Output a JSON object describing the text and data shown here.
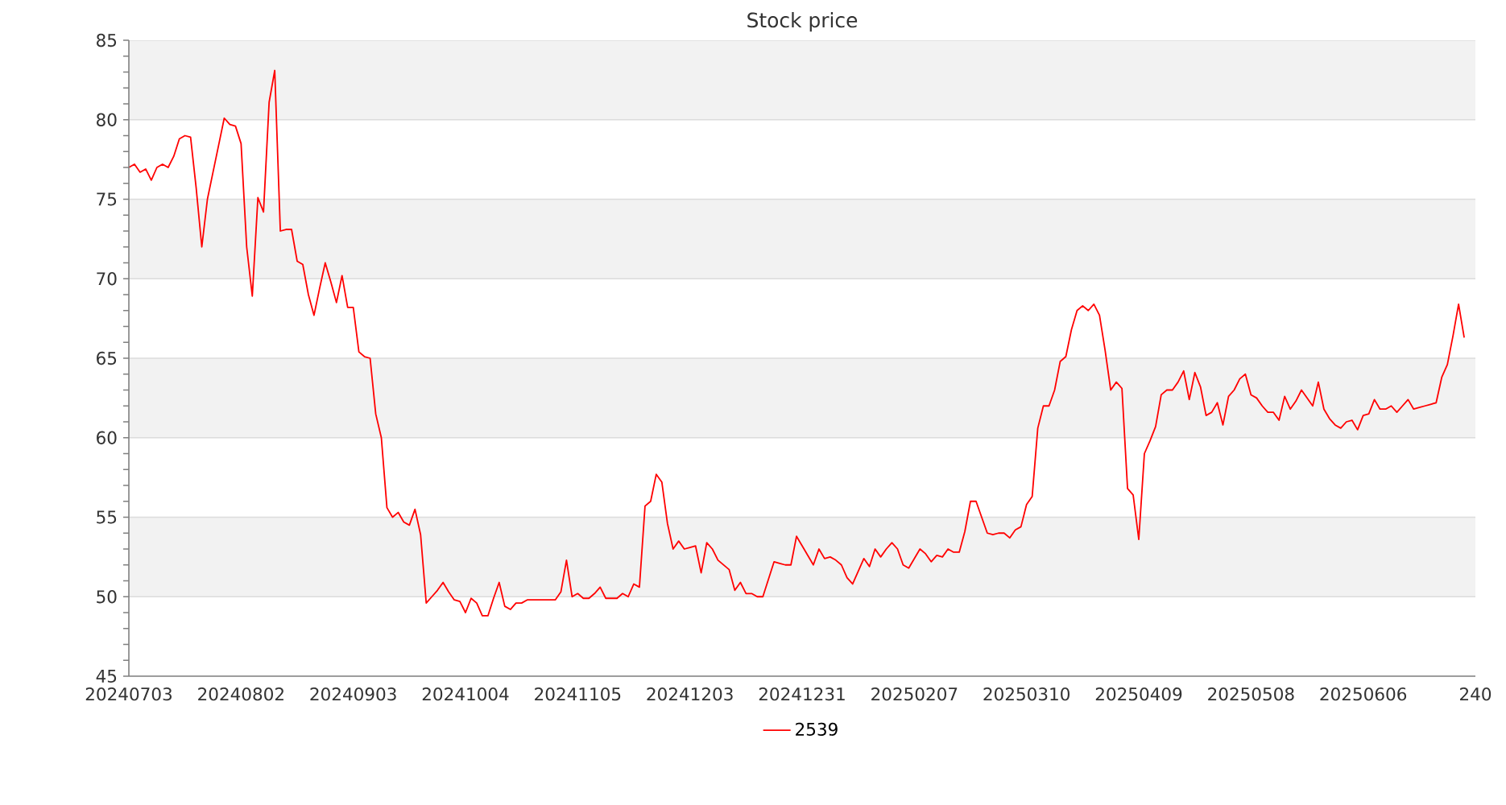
{
  "chart_data": {
    "type": "line",
    "title": "Stock price",
    "categories": [
      "20240703",
      null,
      null,
      null,
      null,
      null,
      null,
      null,
      null,
      null,
      null,
      null,
      null,
      null,
      null,
      null,
      null,
      null,
      null,
      null,
      "20240802",
      null,
      null,
      null,
      null,
      null,
      null,
      null,
      null,
      null,
      null,
      null,
      null,
      null,
      null,
      null,
      null,
      null,
      null,
      null,
      "20240903",
      null,
      null,
      null,
      null,
      null,
      null,
      null,
      null,
      null,
      null,
      null,
      null,
      null,
      null,
      null,
      null,
      null,
      null,
      null,
      "20241004",
      null,
      null,
      null,
      null,
      null,
      null,
      null,
      null,
      null,
      null,
      null,
      null,
      null,
      null,
      null,
      null,
      null,
      null,
      null,
      "20241105",
      null,
      null,
      null,
      null,
      null,
      null,
      null,
      null,
      null,
      null,
      null,
      null,
      null,
      null,
      null,
      null,
      null,
      null,
      null,
      "20241203",
      null,
      null,
      null,
      null,
      null,
      null,
      null,
      null,
      null,
      null,
      null,
      null,
      null,
      null,
      null,
      null,
      null,
      null,
      null,
      "20241231",
      null,
      null,
      null,
      null,
      null,
      null,
      null,
      null,
      null,
      null,
      null,
      null,
      null,
      null,
      null,
      null,
      null,
      null,
      null,
      "20250207",
      null,
      null,
      null,
      null,
      null,
      null,
      null,
      null,
      null,
      null,
      null,
      null,
      null,
      null,
      null,
      null,
      null,
      null,
      null,
      "20250310",
      null,
      null,
      null,
      null,
      null,
      null,
      null,
      null,
      null,
      null,
      null,
      null,
      null,
      null,
      null,
      null,
      null,
      null,
      null,
      "20250409",
      null,
      null,
      null,
      null,
      null,
      null,
      null,
      null,
      null,
      null,
      null,
      null,
      null,
      null,
      null,
      null,
      null,
      null,
      null,
      "20250508",
      null,
      null,
      null,
      null,
      null,
      null,
      null,
      null,
      null,
      null,
      null,
      null,
      null,
      null,
      null,
      null,
      null,
      null,
      null,
      "20250606",
      null,
      null,
      null,
      null,
      null,
      null,
      null,
      null,
      null,
      null,
      null,
      null,
      null,
      null,
      null,
      null,
      null,
      null,
      null,
      "240"
    ],
    "series": [
      {
        "name": "2539",
        "color": "#ff0000",
        "values": [
          77.0,
          77.2,
          76.7,
          76.9,
          76.2,
          77.0,
          77.2,
          77.0,
          77.7,
          78.8,
          79.0,
          78.9,
          75.7,
          72.0,
          75.0,
          76.7,
          78.4,
          80.1,
          79.7,
          79.6,
          78.5,
          72.0,
          68.9,
          75.1,
          74.2,
          81.1,
          83.1,
          73.0,
          73.1,
          73.1,
          71.1,
          70.9,
          69.0,
          67.7,
          69.4,
          71.0,
          69.8,
          68.5,
          70.2,
          68.2,
          68.2,
          65.4,
          65.1,
          65.0,
          61.5,
          60.0,
          55.6,
          55.0,
          55.3,
          54.7,
          54.5,
          55.5,
          53.9,
          49.6,
          50.0,
          50.4,
          50.9,
          50.3,
          49.8,
          49.7,
          49.0,
          49.9,
          49.6,
          48.8,
          48.8,
          49.9,
          50.9,
          49.4,
          49.2,
          49.6,
          49.6,
          49.8,
          49.8,
          49.8,
          49.8,
          49.8,
          49.8,
          50.3,
          52.3,
          50.0,
          50.2,
          49.9,
          49.9,
          50.2,
          50.6,
          49.9,
          49.9,
          49.9,
          50.2,
          50.0,
          50.8,
          50.6,
          55.7,
          56.0,
          57.7,
          57.2,
          54.6,
          53.0,
          53.5,
          53.0,
          53.1,
          53.2,
          51.5,
          53.4,
          53.0,
          52.3,
          52.0,
          51.7,
          50.4,
          50.9,
          50.2,
          50.2,
          50.0,
          50.0,
          51.1,
          52.2,
          52.1,
          52.0,
          52.0,
          53.8,
          53.2,
          52.6,
          52.0,
          53.0,
          52.4,
          52.5,
          52.3,
          52.0,
          51.2,
          50.8,
          51.6,
          52.4,
          51.9,
          53.0,
          52.5,
          53.0,
          53.4,
          53.0,
          52.0,
          51.8,
          52.4,
          53.0,
          52.7,
          52.2,
          52.6,
          52.5,
          53.0,
          52.8,
          52.8,
          54.1,
          56.0,
          56.0,
          55.0,
          54.0,
          53.9,
          54.0,
          54.0,
          53.7,
          54.2,
          54.4,
          55.8,
          56.3,
          60.6,
          62.0,
          62.0,
          63.0,
          64.8,
          65.1,
          66.8,
          68.0,
          68.3,
          68.0,
          68.4,
          67.7,
          65.5,
          63.0,
          63.5,
          63.1,
          56.8,
          56.4,
          53.6,
          59.0,
          59.8,
          60.7,
          62.7,
          63.0,
          63.0,
          63.5,
          64.2,
          62.4,
          64.1,
          63.2,
          61.4,
          61.6,
          62.2,
          60.8,
          62.6,
          63.0,
          63.7,
          64.0,
          62.7,
          62.5,
          62.0,
          61.6,
          61.6,
          61.1,
          62.6,
          61.8,
          62.3,
          63.0,
          62.5,
          62.0,
          63.5,
          61.8,
          61.2,
          60.8,
          60.6,
          61.0,
          61.1,
          60.5,
          61.4,
          61.5,
          62.4,
          61.8,
          61.8,
          62.0,
          61.6,
          62.0,
          62.4,
          61.8,
          61.9,
          62.0,
          62.1,
          62.2,
          63.8,
          64.6,
          66.4,
          68.4,
          66.3,
          null,
          null
        ]
      }
    ],
    "ylim": [
      45,
      85
    ],
    "yticks": [
      45,
      {
        "value": 46,
        "label": null
      },
      {
        "value": 47,
        "label": null
      },
      {
        "value": 48,
        "label": null
      },
      {
        "value": 49,
        "label": null
      },
      50,
      {
        "value": 51,
        "label": null
      },
      {
        "value": 52,
        "label": null
      },
      {
        "value": 53,
        "label": null
      },
      {
        "value": 54,
        "label": null
      },
      55,
      {
        "value": 56,
        "label": null
      },
      {
        "value": 57,
        "label": null
      },
      {
        "value": 58,
        "label": null
      },
      {
        "value": 59,
        "label": null
      },
      60,
      {
        "value": 61,
        "label": null
      },
      {
        "value": 62,
        "label": null
      },
      {
        "value": 63,
        "label": null
      },
      {
        "value": 64,
        "label": null
      },
      65,
      {
        "value": 66,
        "label": null
      },
      {
        "value": 67,
        "label": null
      },
      {
        "value": 68,
        "label": null
      },
      {
        "value": 69,
        "label": null
      },
      70,
      {
        "value": 71,
        "label": null
      },
      {
        "value": 72,
        "label": null
      },
      {
        "value": 73,
        "label": null
      },
      {
        "value": 74,
        "label": null
      },
      75,
      {
        "value": 76,
        "label": null
      },
      {
        "value": 77,
        "label": null
      },
      {
        "value": 78,
        "label": null
      },
      {
        "value": 79,
        "label": null
      },
      80,
      {
        "value": 81,
        "label": null
      },
      {
        "value": 82,
        "label": null
      },
      {
        "value": 83,
        "label": null
      },
      {
        "value": 84,
        "label": null
      },
      85
    ],
    "grid": "y",
    "bands": [
      {
        "axis": "y",
        "from": 50,
        "to": 55,
        "color": "#f2f2f2"
      },
      {
        "axis": "y",
        "from": 60,
        "to": 65,
        "color": "#f2f2f2"
      },
      {
        "axis": "y",
        "from": 70,
        "to": 75,
        "color": "#f2f2f2"
      },
      {
        "axis": "y",
        "from": 80,
        "to": 85,
        "color": "#f2f2f2"
      }
    ],
    "legend": "bottom",
    "line_style": "solid"
  }
}
